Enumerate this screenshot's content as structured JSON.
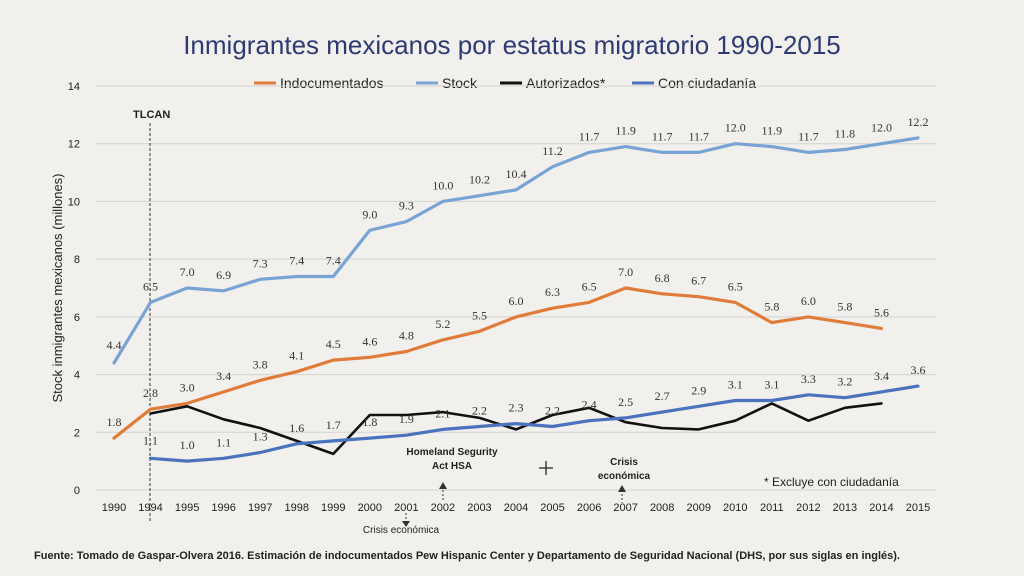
{
  "chart_data": {
    "type": "line",
    "title": "Inmigrantes mexicanos por estatus migratorio 1990-2015",
    "ylabel": "Stock inmigrantes mexicanos (millones)",
    "xlabel": "",
    "ylim": [
      0,
      14
    ],
    "yticks": [
      0,
      2,
      4,
      6,
      8,
      10,
      12,
      14
    ],
    "grid": true,
    "legend_position": "top",
    "categories": [
      "1990",
      "1994",
      "1995",
      "1996",
      "1997",
      "1998",
      "1999",
      "2000",
      "2001",
      "2002",
      "2003",
      "2004",
      "2005",
      "2006",
      "2007",
      "2008",
      "2009",
      "2010",
      "2011",
      "2012",
      "2013",
      "2014",
      "2015"
    ],
    "series": [
      {
        "name": "Indocumentados",
        "color": "#e07b39",
        "values": [
          1.8,
          2.8,
          3.0,
          3.4,
          3.8,
          4.1,
          4.5,
          4.6,
          4.8,
          5.2,
          5.5,
          6.0,
          6.3,
          6.5,
          7.0,
          6.8,
          6.7,
          6.5,
          5.8,
          6.0,
          5.8,
          5.6,
          null
        ],
        "labels": [
          "1.8",
          "2.8",
          "3.0",
          "3.4",
          "3.8",
          "4.1",
          "4.5",
          "4.6",
          "4.8",
          "5.2",
          "5.5",
          "6.0",
          "6.3",
          "6.5",
          "7.0",
          "6.8",
          "6.7",
          "6.5",
          "5.8",
          "6.0",
          "5.8",
          "5.6",
          ""
        ]
      },
      {
        "name": "Stock",
        "color": "#79a3d4",
        "values": [
          4.4,
          6.5,
          7.0,
          6.9,
          7.3,
          7.4,
          7.4,
          9.0,
          9.3,
          10.0,
          10.2,
          10.4,
          11.2,
          11.7,
          11.9,
          11.7,
          11.7,
          12.0,
          11.9,
          11.7,
          11.8,
          12.0,
          12.2
        ],
        "labels": [
          "4.4",
          "6.5",
          "7.0",
          "6.9",
          "7.3",
          "7.4",
          "7.4",
          "9.0",
          "9.3",
          "10.0",
          "10.2",
          "10.4",
          "11.2",
          "11.7",
          "11.9",
          "11.7",
          "11.7",
          "12.0",
          "11.9",
          "11.7",
          "11.8",
          "12.0",
          "12.2"
        ]
      },
      {
        "name": "Autorizados*",
        "color": "#111111",
        "values": [
          null,
          2.65,
          2.9,
          2.45,
          2.15,
          1.7,
          1.25,
          2.6,
          2.6,
          2.7,
          2.5,
          2.1,
          2.6,
          2.85,
          2.35,
          2.15,
          2.1,
          2.4,
          3.0,
          2.4,
          2.85,
          3.0,
          null
        ],
        "labels": []
      },
      {
        "name": "Con ciudadanía",
        "color": "#4a72bd",
        "values": [
          null,
          1.1,
          1.0,
          1.1,
          1.3,
          1.6,
          1.7,
          1.8,
          1.9,
          2.1,
          2.2,
          2.3,
          2.2,
          2.4,
          2.5,
          2.7,
          2.9,
          3.1,
          3.1,
          3.3,
          3.2,
          3.4,
          3.6
        ],
        "labels": [
          "",
          "1.1",
          "1.0",
          "1.1",
          "1.3",
          "1.6",
          "1.7",
          "1.8",
          "1.9",
          "2.1",
          "2.2",
          "2.3",
          "2.2",
          "2.4",
          "2.5",
          "2.7",
          "2.9",
          "3.1",
          "3.1",
          "3.3",
          "3.2",
          "3.4",
          "3.6"
        ]
      }
    ],
    "annotations": {
      "tlcan": "TLCAN",
      "homeland_line1": "Homeland Segurity",
      "homeland_line2": "Act HSA",
      "crisis_2007_line1": "Crisis",
      "crisis_2007_line2": "económica",
      "crisis_2001": "Crisis económica",
      "note": "* Excluye con ciudadanía",
      "source": "Fuente: Tomado de Gaspar-Olvera 2016. Estimación de indocumentados Pew Hispanic Center y Departamento de Seguridad Nacional (DHS, por sus siglas en inglés)."
    }
  }
}
